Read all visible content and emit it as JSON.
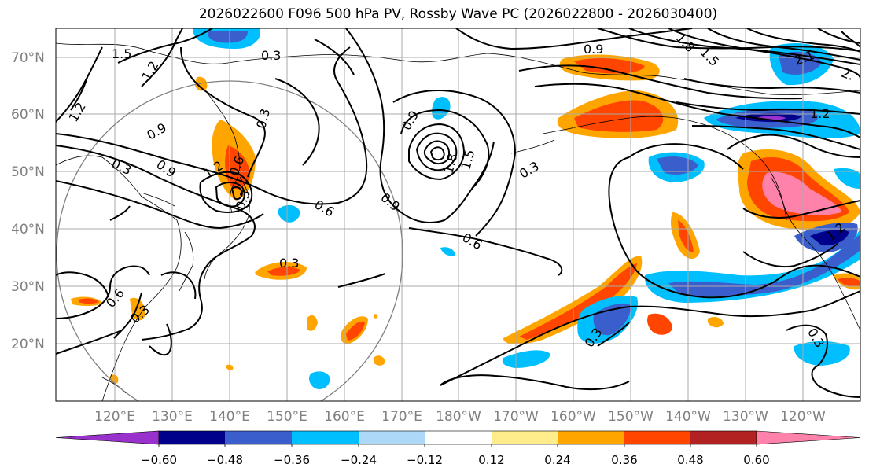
{
  "title": "2026022600 F096 500 hPa PV, Rossby Wave PC (2026022800 - 2026030400)",
  "lat_labels": [
    "20°N",
    "30°N",
    "40°N",
    "50°N",
    "60°N",
    "70°N"
  ],
  "lon_labels": [
    "120°E",
    "130°E",
    "140°E",
    "150°E",
    "160°E",
    "170°E",
    "180°W",
    "170°W",
    "160°W",
    "150°W",
    "140°W",
    "130°W",
    "120°W"
  ],
  "colorbar": {
    "ticks": [
      "−0.60",
      "−0.48",
      "−0.36",
      "−0.24",
      "−0.12",
      "0.12",
      "0.24",
      "0.36",
      "0.48",
      "0.60"
    ],
    "colors": [
      "#9932cc",
      "#00008b",
      "#3a5fcd",
      "#00bfff",
      "#add8f7",
      "#ffffff",
      "#ffec8b",
      "#ffa500",
      "#ff4500",
      "#b22222",
      "#ff82ab"
    ]
  },
  "contour_labels": [
    "1.5",
    "1.2",
    "0.3",
    "1.2",
    "0.9",
    "0.3",
    "0.9",
    "1.2",
    "0.6",
    "0.9",
    "0.6",
    "0.3",
    "0.3",
    "0.6",
    "0.3",
    "0.9",
    "1.8",
    "1.5",
    "0.3",
    "0.9",
    "0.6",
    "0.3",
    "1.8",
    "1.5",
    "1.2",
    "2.1",
    "2.",
    "1.2",
    "0.3",
    "0.3",
    "0.6",
    "1.8"
  ]
}
